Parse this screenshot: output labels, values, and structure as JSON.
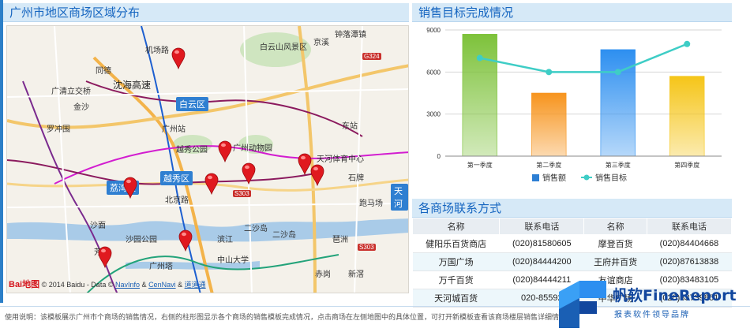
{
  "map_panel": {
    "title": "广州市地区商场区域分布",
    "labels": [
      {
        "text": "机场路",
        "cls": ""
      },
      {
        "text": "钟落潭镇",
        "cls": ""
      },
      {
        "text": "白云山风景区",
        "cls": ""
      },
      {
        "text": "京溪",
        "cls": ""
      },
      {
        "text": "同德",
        "cls": ""
      },
      {
        "text": "广清立交桥",
        "cls": ""
      },
      {
        "text": "沈海高速",
        "cls": "big"
      },
      {
        "text": "金沙",
        "cls": ""
      },
      {
        "text": "罗冲围",
        "cls": ""
      },
      {
        "text": "广州站",
        "cls": ""
      },
      {
        "text": "越秀公园",
        "cls": ""
      },
      {
        "text": "广州动物园",
        "cls": ""
      },
      {
        "text": "东站",
        "cls": ""
      },
      {
        "text": "天河体育中心",
        "cls": ""
      },
      {
        "text": "石牌",
        "cls": ""
      },
      {
        "text": "北京路",
        "cls": ""
      },
      {
        "text": "跑马场",
        "cls": ""
      },
      {
        "text": "沙面",
        "cls": ""
      },
      {
        "text": "二沙岛",
        "cls": ""
      },
      {
        "text": "沙园公园",
        "cls": ""
      },
      {
        "text": "滨江",
        "cls": ""
      },
      {
        "text": "二沙岛",
        "cls": ""
      },
      {
        "text": "中山大学",
        "cls": ""
      },
      {
        "text": "广州塔",
        "cls": ""
      },
      {
        "text": "芳村",
        "cls": ""
      },
      {
        "text": "赤岗",
        "cls": ""
      },
      {
        "text": "琶洲",
        "cls": ""
      },
      {
        "text": "新滘",
        "cls": ""
      }
    ],
    "districts": [
      "白云区",
      "越秀区",
      "荔湾区",
      "天河"
    ],
    "road_tags": [
      "G324",
      "S303",
      "S303"
    ],
    "attribution": {
      "logo": "Bai地图",
      "copyright": "© 2014 Baidu - Data ©",
      "link1": "NavInfo",
      "amp": "&",
      "link2": "CenNavi",
      "amp2": "&",
      "link3": "道道通"
    }
  },
  "chart_panel": {
    "title": "销售目标完成情况"
  },
  "chart_data": {
    "type": "bar",
    "categories": [
      "第一季度",
      "第二季度",
      "第三季度",
      "第四季度"
    ],
    "series": [
      {
        "name": "销售额",
        "type": "bar",
        "values": [
          8700,
          4500,
          7600,
          5700
        ]
      },
      {
        "name": "销售目标",
        "type": "line",
        "values": [
          7000,
          6000,
          6000,
          8000
        ]
      }
    ],
    "ylim": [
      0,
      9000
    ],
    "yticks": [
      0,
      3000,
      6000,
      9000
    ],
    "grid": true,
    "legend": "bottom",
    "colors": {
      "bars": [
        "#7dc23a",
        "#f7941d",
        "#2d8ff0",
        "#f5c518"
      ],
      "line": "#3ecdc6",
      "legend_bar": "#2d7fd4"
    }
  },
  "contact_panel": {
    "title": "各商场联系方式",
    "headers": [
      "名称",
      "联系电话",
      "名称",
      "联系电话"
    ],
    "rows": [
      [
        "健阳乐百货商店",
        "(020)81580605",
        "摩登百货",
        "(020)84404668"
      ],
      [
        "万国广场",
        "(020)84444200",
        "王府井百货",
        "(020)87613838"
      ],
      [
        "万千百货",
        "(020)84444211",
        "友谊商店",
        "(020)83483105"
      ],
      [
        "天河城百货",
        "020-85592",
        "中华广场",
        "(020)83739861"
      ]
    ]
  },
  "footer": {
    "text": "使用说明：该模板展示广州市个商场的销售情况，右侧的柱形图显示各个商场的销售模板完成情况，点击商场在左侧地图中的具体位置，可打开新模板查看该商场楼层销售详细情况。"
  },
  "brand": {
    "name": "帆软FineReport",
    "sub": "报表软件领导品牌"
  }
}
